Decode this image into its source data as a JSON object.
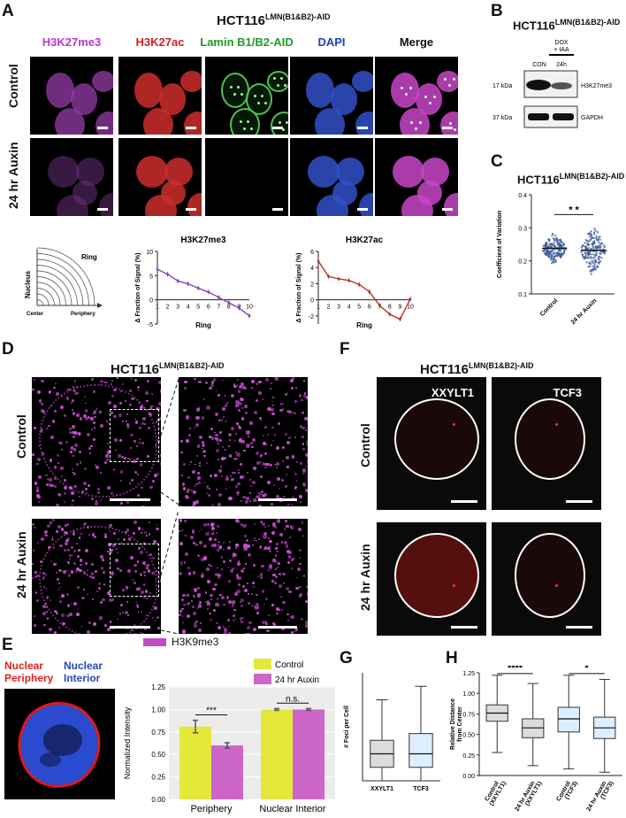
{
  "panels": {
    "a": "A",
    "b": "B",
    "c": "C",
    "d": "D",
    "e": "E",
    "f": "F",
    "g": "G",
    "h": "H"
  },
  "cell_line": {
    "base": "HCT116",
    "sup": "LMN(B1&B2)-AID"
  },
  "panel_a": {
    "channels": [
      "H3K27me3",
      "H3K27ac",
      "Lamin B1/B2-AID",
      "DAPI",
      "Merge"
    ],
    "channel_colors": [
      "#b43cc8",
      "#d42020",
      "#1f9a2a",
      "#2040c0",
      "#111111"
    ],
    "rows": [
      "Control",
      "24 hr Auxin"
    ],
    "schematic": {
      "ring": "Ring",
      "nucleus": "Nucleus",
      "center": "Center",
      "periphery": "Periphery"
    }
  },
  "panel_b": {
    "lanes": [
      "CON",
      "DOX\n+ IAA",
      "24h"
    ],
    "dox_label": "DOX",
    "iaa_label": "+ IAA",
    "time_label": "24h",
    "con_label": "CON",
    "markers": [
      "17 kDa",
      "37 kDa"
    ],
    "proteins": [
      "H3K27me3",
      "GAPDH"
    ]
  },
  "chart_data": [
    {
      "id": "A-H3K27me3",
      "type": "line",
      "title": "H3K27me3",
      "xlabel": "Ring",
      "ylabel": "Δ Fraction of Signal (%)",
      "x": [
        1,
        2,
        3,
        4,
        5,
        6,
        7,
        8,
        9,
        10
      ],
      "ylim": [
        -5,
        10
      ],
      "yticks": [
        -5,
        0,
        5,
        10
      ],
      "series": [
        {
          "name": "",
          "values": [
            6.3,
            5.3,
            3.9,
            3.3,
            2.4,
            1.6,
            0.5,
            -0.6,
            -1.7,
            -3.3
          ],
          "color": "#8a44b8"
        }
      ]
    },
    {
      "id": "A-H3K27ac",
      "type": "line",
      "title": "H3K27ac",
      "xlabel": "Ring",
      "ylabel": "Δ Fraction of Signal (%)",
      "x": [
        1,
        2,
        3,
        4,
        5,
        6,
        7,
        8,
        9,
        10
      ],
      "ylim": [
        -3,
        6
      ],
      "yticks": [
        -2,
        0,
        2,
        4,
        6
      ],
      "series": [
        {
          "name": "",
          "values": [
            4.8,
            2.9,
            2.6,
            2.4,
            1.9,
            1.0,
            -0.7,
            -1.8,
            -2.4,
            0.1
          ],
          "color": "#c0302a"
        }
      ]
    },
    {
      "id": "C",
      "type": "scatter",
      "title": "HCT116",
      "ylabel": "Coefficient of Variation",
      "categories": [
        "Control",
        "24 hr Auxin"
      ],
      "ylim": [
        0.1,
        0.4
      ],
      "yticks": [
        0.1,
        0.2,
        0.3,
        0.4
      ],
      "medians": [
        0.238,
        0.232
      ],
      "significance": "* *"
    },
    {
      "id": "E",
      "type": "bar",
      "categories": [
        "Periphery",
        "Nuclear Interior"
      ],
      "ylabel": "Normalized Intensity",
      "ylim": [
        0,
        1.25
      ],
      "yticks": [
        0.0,
        0.25,
        0.5,
        0.75,
        1.0,
        1.25
      ],
      "series": [
        {
          "name": "Control",
          "values": [
            0.81,
            1.0
          ],
          "errors": [
            0.07,
            0.01
          ],
          "color": "#e3e83a"
        },
        {
          "name": "24 hr Auxin",
          "values": [
            0.6,
            1.0
          ],
          "errors": [
            0.03,
            0.01
          ],
          "color": "#cc66c8"
        }
      ],
      "significance": [
        "***",
        "n.s."
      ]
    },
    {
      "id": "G",
      "type": "box",
      "categories": [
        "XXYLT1",
        "TCF3"
      ],
      "ylabel": "# Foci per Cell",
      "ylim": [
        0,
        8
      ],
      "boxes": [
        {
          "min": 0,
          "q1": 1,
          "median": 2,
          "q3": 3,
          "max": 6,
          "color": "#dcdcdc"
        },
        {
          "min": 0,
          "q1": 1,
          "median": 2,
          "q3": 3.5,
          "max": 7,
          "color": "#ddeeff"
        }
      ]
    },
    {
      "id": "H",
      "type": "box",
      "categories": [
        "Control (XXYLT1)",
        "24 hr Auxin (XXYLT1)",
        "Control (TCF3)",
        "24 hr Auxin (TCF3)"
      ],
      "ylabel": "Relative Distance from Center",
      "ylim": [
        0,
        1.25
      ],
      "yticks": [
        0.0,
        0.25,
        0.5,
        0.75,
        1.0,
        1.25
      ],
      "boxes": [
        {
          "min": 0.28,
          "q1": 0.66,
          "median": 0.76,
          "q3": 0.86,
          "max": 1.22,
          "color": "#dcdcdc"
        },
        {
          "min": 0.12,
          "q1": 0.46,
          "median": 0.58,
          "q3": 0.69,
          "max": 1.12,
          "color": "#dcdcdc"
        },
        {
          "min": 0.08,
          "q1": 0.53,
          "median": 0.69,
          "q3": 0.83,
          "max": 1.22,
          "color": "#ddeeff"
        },
        {
          "min": 0.04,
          "q1": 0.45,
          "median": 0.58,
          "q3": 0.71,
          "max": 1.17,
          "color": "#ddeeff"
        }
      ],
      "significance": [
        "****",
        "*"
      ]
    }
  ],
  "panel_d": {
    "rows": [
      "Control",
      "24 hr Auxin"
    ],
    "legend": "H3K9me3",
    "legend_color": "#c04cc8"
  },
  "panel_e": {
    "periphery": "Nuclear\nPeriphery",
    "periphery_1": "Nuclear",
    "periphery_2": "Periphery",
    "interior_1": "Nuclear",
    "interior_2": "Interior"
  },
  "panel_f": {
    "genes": [
      "XXYLT1",
      "TCF3"
    ],
    "rows": [
      "Control",
      "24 hr Auxin"
    ]
  }
}
